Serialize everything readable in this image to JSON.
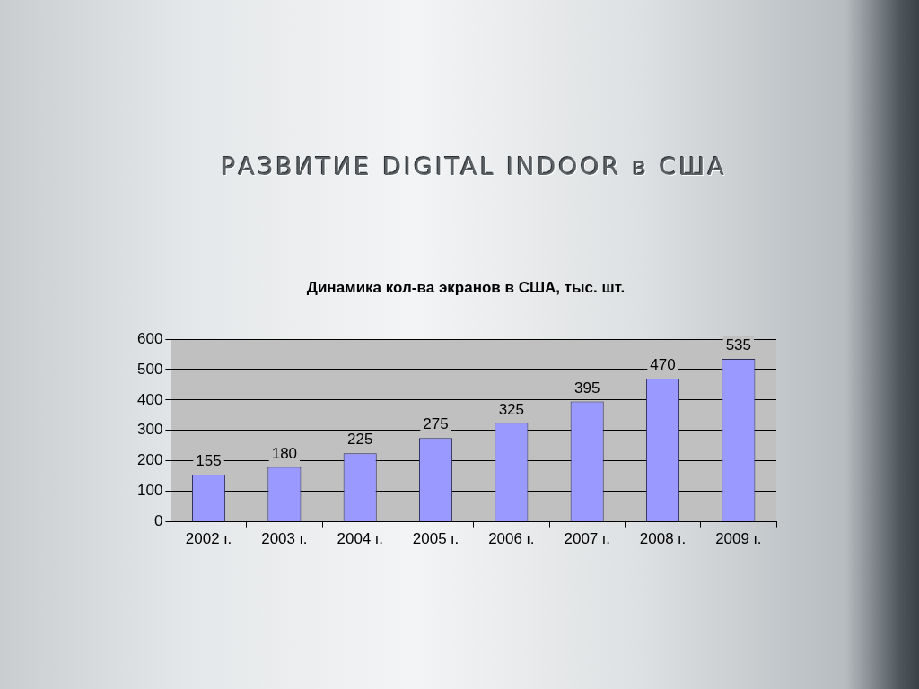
{
  "chart_data": {
    "type": "bar",
    "title": "РАЗВИТИЕ DIGITAL INDOOR в США",
    "subtitle": "Динамика кол-ва экранов в США, тыс. шт.",
    "categories": [
      "2002 г.",
      "2003 г.",
      "2004 г.",
      "2005 г.",
      "2006 г.",
      "2007 г.",
      "2008 г.",
      "2009 г."
    ],
    "values": [
      155,
      180,
      225,
      275,
      325,
      395,
      470,
      535
    ],
    "color": "#9999ff",
    "ylim": [
      0,
      600
    ],
    "yticks": [
      0,
      100,
      200,
      300,
      400,
      500,
      600
    ],
    "grid": "y",
    "data_labels": true
  }
}
